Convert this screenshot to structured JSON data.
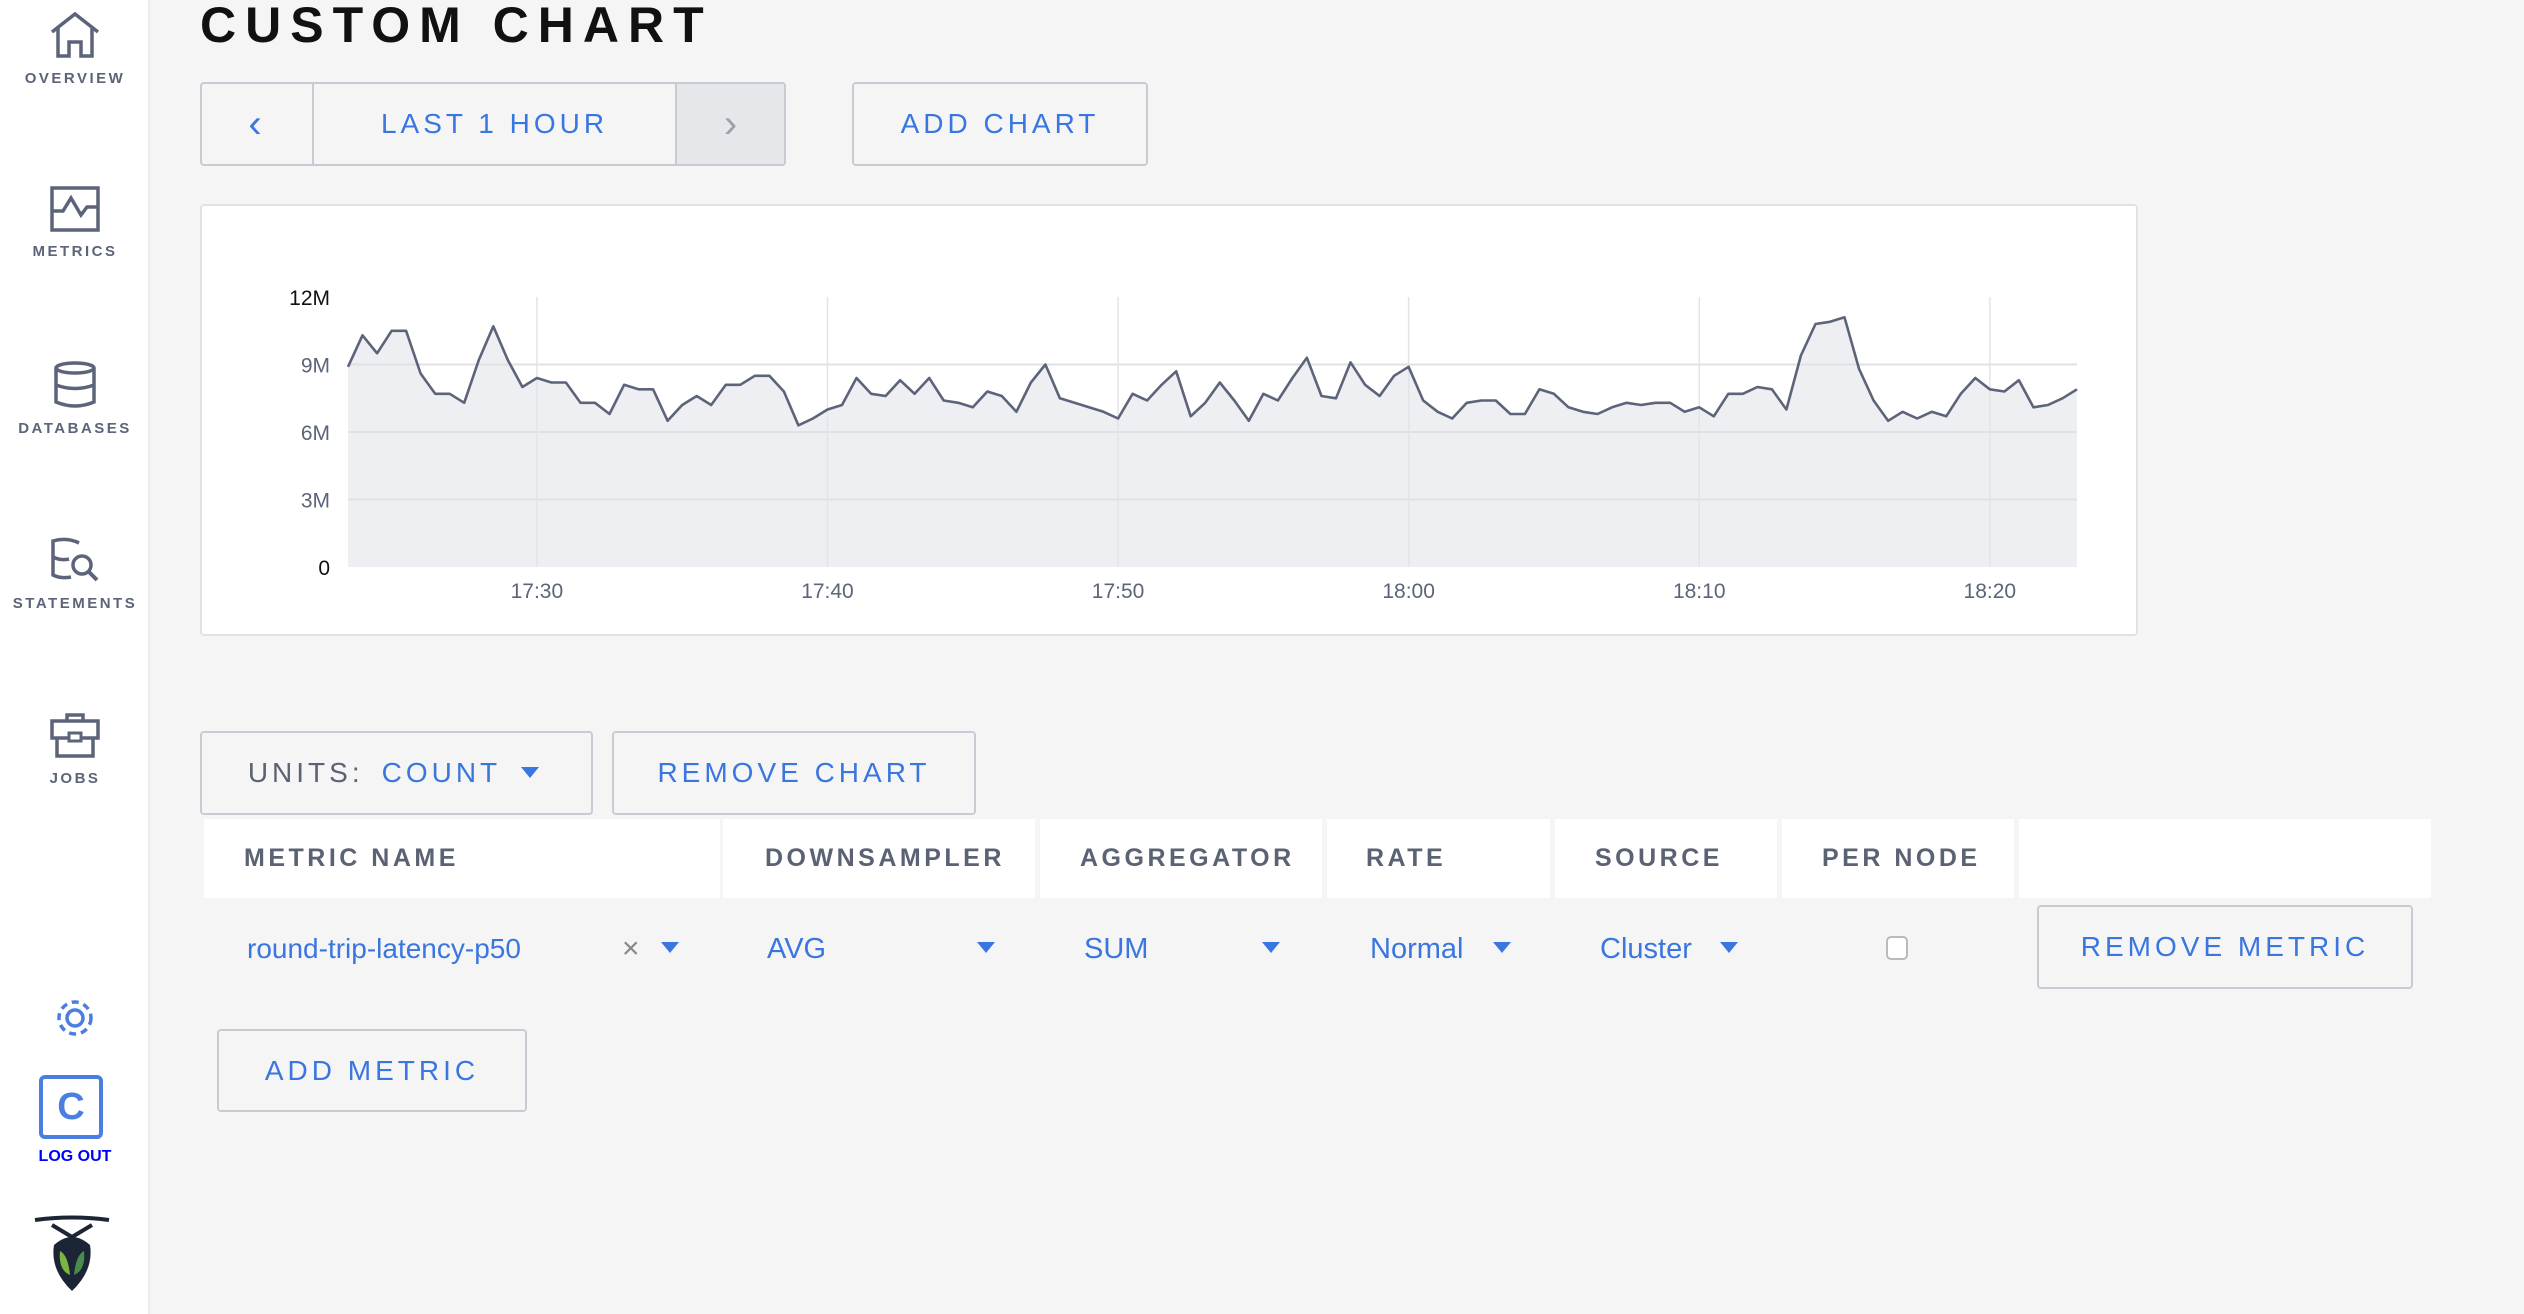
{
  "sidebar": {
    "items": [
      {
        "label": "OVERVIEW",
        "icon": "home-icon"
      },
      {
        "label": "METRICS",
        "icon": "metrics-icon"
      },
      {
        "label": "DATABASES",
        "icon": "database-icon"
      },
      {
        "label": "STATEMENTS",
        "icon": "statements-icon"
      },
      {
        "label": "JOBS",
        "icon": "briefcase-icon"
      }
    ],
    "logout_label": "LOG OUT",
    "avatar_letter": "C"
  },
  "page": {
    "title": "CUSTOM CHART"
  },
  "time_range": {
    "label": "LAST 1 HOUR",
    "prev": "‹",
    "next": "›"
  },
  "add_chart_label": "ADD CHART",
  "units": {
    "label": "UNITS:",
    "value": "COUNT"
  },
  "remove_chart_label": "REMOVE CHART",
  "table": {
    "headers": [
      "METRIC NAME",
      "DOWNSAMPLER",
      "AGGREGATOR",
      "RATE",
      "SOURCE",
      "PER NODE"
    ],
    "row": {
      "metric": "round-trip-latency-p50",
      "clear": "×",
      "downsampler": "AVG",
      "aggregator": "SUM",
      "rate": "Normal",
      "source": "Cluster",
      "per_node": false
    },
    "remove_metric_label": "REMOVE METRIC"
  },
  "add_metric_label": "ADD METRIC",
  "colors": {
    "accent": "#3a76e0",
    "line": "#5c6479",
    "area": "#eeeff3"
  },
  "chart_data": {
    "type": "area",
    "ylim": [
      0,
      12000000
    ],
    "y_ticks": [
      "0",
      "3M",
      "6M",
      "9M",
      "12M"
    ],
    "x_ticks": [
      "17:30",
      "17:40",
      "17:50",
      "18:00",
      "18:10",
      "18:20"
    ],
    "x_range": [
      "17:23:30",
      "18:23:00"
    ],
    "grid": true,
    "interval_seconds": 30,
    "values_millions": [
      8.9,
      10.3,
      9.5,
      10.5,
      10.5,
      8.6,
      7.7,
      7.7,
      7.3,
      9.2,
      10.7,
      9.2,
      8.0,
      8.4,
      8.2,
      8.2,
      7.3,
      7.3,
      6.8,
      8.1,
      7.9,
      7.9,
      6.5,
      7.2,
      7.6,
      7.2,
      8.1,
      8.1,
      8.5,
      8.5,
      7.8,
      6.3,
      6.6,
      7.0,
      7.2,
      8.4,
      7.7,
      7.6,
      8.3,
      7.7,
      8.4,
      7.4,
      7.3,
      7.1,
      7.8,
      7.6,
      6.9,
      8.2,
      9.0,
      7.5,
      7.3,
      7.1,
      6.9,
      6.6,
      7.7,
      7.4,
      8.1,
      8.7,
      6.7,
      7.3,
      8.2,
      7.4,
      6.5,
      7.7,
      7.4,
      8.4,
      9.3,
      7.6,
      7.5,
      9.1,
      8.1,
      7.6,
      8.5,
      8.9,
      7.4,
      6.9,
      6.6,
      7.3,
      7.4,
      7.4,
      6.8,
      6.8,
      7.9,
      7.7,
      7.1,
      6.9,
      6.8,
      7.1,
      7.3,
      7.2,
      7.3,
      7.3,
      6.9,
      7.1,
      6.7,
      7.7,
      7.7,
      8.0,
      7.9,
      7.0,
      9.4,
      10.8,
      10.9,
      11.1,
      8.8,
      7.4,
      6.5,
      6.9,
      6.6,
      6.9,
      6.7,
      7.7,
      8.4,
      7.9,
      7.8,
      8.3,
      7.1,
      7.2,
      7.5,
      7.9
    ]
  }
}
